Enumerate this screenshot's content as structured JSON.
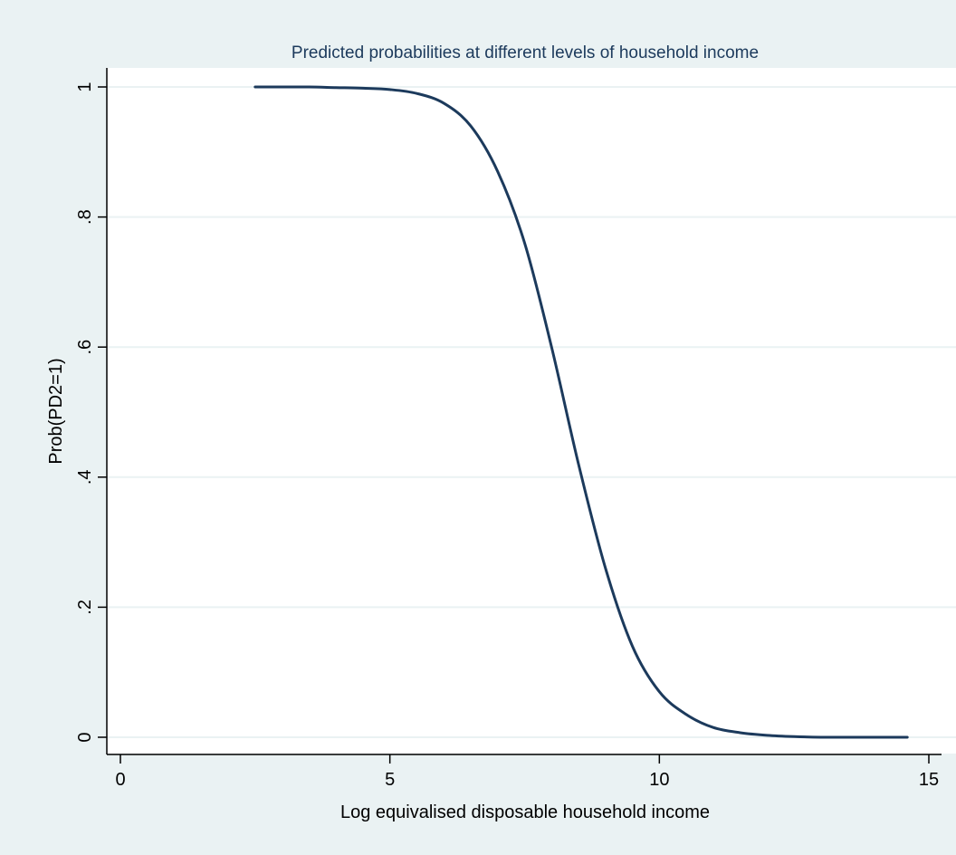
{
  "chart_data": {
    "type": "line",
    "title": "Predicted probabilities at different levels of household income",
    "xlabel": "Log equivalised disposable household income",
    "ylabel": "Prob(PD2=1)",
    "xlim": [
      0,
      15
    ],
    "ylim": [
      0,
      1
    ],
    "xticks": [
      0,
      5,
      10,
      15
    ],
    "xtick_labels": [
      "0",
      "5",
      "10",
      "15"
    ],
    "yticks": [
      0,
      0.2,
      0.4,
      0.6,
      0.8,
      1
    ],
    "ytick_labels": [
      "0",
      ".2",
      ".4",
      ".6",
      ".8",
      "1"
    ],
    "grid": true,
    "line_color": "#1c3a5c",
    "background_color": "#eaf2f3",
    "plot_background_color": "#ffffff",
    "series": [
      {
        "x": [
          2.5,
          3.0,
          3.5,
          4.0,
          4.5,
          5.0,
          5.5,
          6.0,
          6.5,
          7.0,
          7.5,
          8.0,
          8.5,
          9.0,
          9.5,
          10.0,
          10.5,
          11.0,
          11.5,
          12.0,
          12.5,
          13.0,
          13.5,
          14.0,
          14.6
        ],
        "y": [
          1.0,
          1.0,
          1.0,
          0.999,
          0.998,
          0.996,
          0.99,
          0.975,
          0.94,
          0.87,
          0.76,
          0.6,
          0.42,
          0.26,
          0.14,
          0.07,
          0.035,
          0.015,
          0.007,
          0.003,
          0.001,
          0.0,
          0.0,
          0.0,
          0.0
        ]
      }
    ]
  }
}
